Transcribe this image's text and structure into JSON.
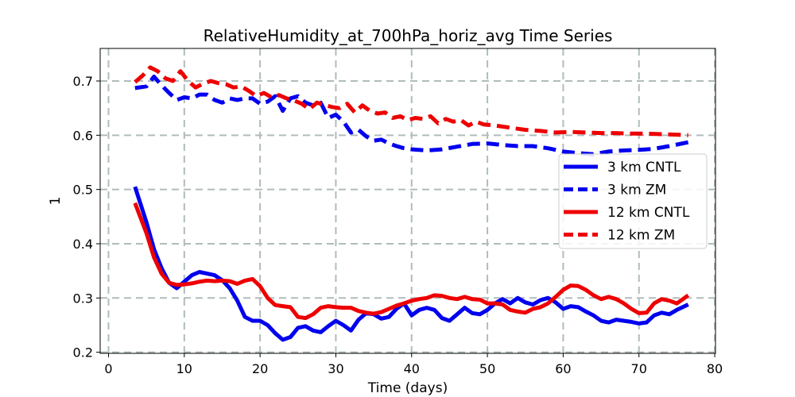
{
  "chart_data": {
    "type": "line",
    "title": "RelativeHumidity_at_700hPa_horiz_avg Time Series",
    "xlabel": "Time (days)",
    "ylabel": "1",
    "xlim": [
      0,
      80
    ],
    "ylim": [
      0.2,
      0.75
    ],
    "xticks": [
      0,
      10,
      20,
      30,
      40,
      50,
      60,
      70,
      80
    ],
    "yticks": [
      0.2,
      0.3,
      0.4,
      0.5,
      0.6,
      0.7
    ],
    "grid": true,
    "legend_position": "center-right",
    "series": [
      {
        "name": "3 km CNTL",
        "color": "#0000ee",
        "style": "solid",
        "x": [
          3.5,
          5,
          6,
          7,
          8,
          9,
          10,
          11,
          12,
          13,
          14,
          15,
          16,
          17,
          18,
          19,
          20,
          21,
          22,
          23,
          24,
          25,
          26,
          27,
          28,
          29,
          30,
          31,
          32,
          33,
          34,
          35,
          36,
          37,
          38,
          39,
          40,
          41,
          42,
          43,
          44,
          45,
          46,
          47,
          48,
          49,
          50,
          51,
          52,
          53,
          54,
          55,
          56,
          57,
          58,
          59,
          60,
          61,
          62,
          63,
          64,
          65,
          66,
          67,
          68,
          69,
          70,
          71,
          72,
          73,
          74,
          75,
          76.5
        ],
        "values": [
          0.505,
          0.44,
          0.39,
          0.355,
          0.328,
          0.318,
          0.33,
          0.342,
          0.348,
          0.345,
          0.342,
          0.333,
          0.318,
          0.295,
          0.265,
          0.258,
          0.258,
          0.25,
          0.235,
          0.223,
          0.228,
          0.245,
          0.248,
          0.24,
          0.237,
          0.248,
          0.258,
          0.25,
          0.24,
          0.26,
          0.272,
          0.27,
          0.262,
          0.265,
          0.28,
          0.29,
          0.268,
          0.278,
          0.282,
          0.278,
          0.263,
          0.258,
          0.27,
          0.282,
          0.272,
          0.27,
          0.278,
          0.29,
          0.298,
          0.29,
          0.3,
          0.292,
          0.288,
          0.296,
          0.3,
          0.292,
          0.28,
          0.285,
          0.283,
          0.275,
          0.268,
          0.258,
          0.255,
          0.26,
          0.258,
          0.256,
          0.253,
          0.255,
          0.268,
          0.273,
          0.27,
          0.278,
          0.288
        ]
      },
      {
        "name": "3 km ZM",
        "color": "#0000ee",
        "style": "dashed",
        "x": [
          3.5,
          5,
          6,
          7,
          8,
          9,
          10,
          11,
          12,
          13,
          14,
          15,
          16,
          17,
          18,
          19,
          20,
          21,
          22,
          23,
          24,
          25,
          26,
          27,
          28,
          29,
          30,
          31,
          32,
          33,
          34,
          35,
          36,
          37,
          38,
          39,
          40,
          42,
          44,
          46,
          48,
          50,
          52,
          54,
          56,
          58,
          60,
          62,
          64,
          66,
          68,
          70,
          72,
          74,
          76.5
        ],
        "values": [
          0.687,
          0.69,
          0.708,
          0.692,
          0.678,
          0.665,
          0.67,
          0.668,
          0.675,
          0.675,
          0.665,
          0.66,
          0.668,
          0.665,
          0.668,
          0.668,
          0.658,
          0.662,
          0.672,
          0.645,
          0.668,
          0.672,
          0.66,
          0.655,
          0.66,
          0.632,
          0.638,
          0.625,
          0.605,
          0.61,
          0.598,
          0.59,
          0.592,
          0.585,
          0.58,
          0.576,
          0.574,
          0.572,
          0.574,
          0.579,
          0.584,
          0.585,
          0.582,
          0.58,
          0.58,
          0.576,
          0.57,
          0.567,
          0.565,
          0.57,
          0.572,
          0.573,
          0.575,
          0.58,
          0.587
        ]
      },
      {
        "name": "12 km CNTL",
        "color": "#ee0000",
        "style": "solid",
        "x": [
          3.5,
          5,
          6,
          7,
          8,
          9,
          10,
          11,
          12,
          13,
          14,
          15,
          16,
          17,
          18,
          19,
          20,
          21,
          22,
          23,
          24,
          25,
          26,
          27,
          28,
          29,
          30,
          31,
          32,
          33,
          34,
          35,
          36,
          37,
          38,
          39,
          40,
          41,
          42,
          43,
          44,
          45,
          46,
          47,
          48,
          49,
          50,
          51,
          52,
          53,
          54,
          55,
          56,
          57,
          58,
          59,
          60,
          61,
          62,
          63,
          64,
          65,
          66,
          67,
          68,
          69,
          70,
          71,
          72,
          73,
          74,
          75,
          76.5
        ],
        "values": [
          0.475,
          0.42,
          0.375,
          0.345,
          0.328,
          0.324,
          0.325,
          0.327,
          0.33,
          0.332,
          0.331,
          0.332,
          0.331,
          0.326,
          0.332,
          0.335,
          0.322,
          0.3,
          0.287,
          0.285,
          0.283,
          0.265,
          0.263,
          0.27,
          0.282,
          0.285,
          0.283,
          0.282,
          0.282,
          0.276,
          0.273,
          0.271,
          0.274,
          0.28,
          0.286,
          0.29,
          0.295,
          0.298,
          0.3,
          0.305,
          0.304,
          0.3,
          0.298,
          0.302,
          0.298,
          0.297,
          0.29,
          0.29,
          0.288,
          0.278,
          0.275,
          0.273,
          0.28,
          0.283,
          0.29,
          0.302,
          0.315,
          0.323,
          0.322,
          0.315,
          0.305,
          0.298,
          0.302,
          0.298,
          0.29,
          0.28,
          0.272,
          0.273,
          0.29,
          0.298,
          0.295,
          0.29,
          0.305
        ]
      },
      {
        "name": "12 km ZM",
        "color": "#ee0000",
        "style": "dashed",
        "x": [
          3.5,
          4.5,
          5.5,
          6.5,
          7.5,
          8.5,
          9.5,
          10.5,
          11.5,
          12.5,
          13.5,
          14.5,
          15.5,
          16.5,
          17.5,
          18.5,
          19.5,
          20.5,
          21.5,
          22.5,
          23.5,
          24.5,
          25.5,
          26.5,
          27.5,
          28.5,
          29.5,
          30.5,
          31.5,
          32.5,
          33.5,
          34.5,
          35.5,
          36.5,
          37.5,
          38.5,
          39.5,
          40.5,
          41.5,
          42.5,
          43.5,
          44.5,
          45.5,
          46.5,
          47.5,
          48.5,
          49.5,
          51,
          53,
          55,
          57,
          59,
          61,
          63,
          65,
          67,
          69,
          71,
          73,
          75,
          76.5
        ],
        "values": [
          0.698,
          0.71,
          0.725,
          0.718,
          0.705,
          0.7,
          0.718,
          0.7,
          0.688,
          0.695,
          0.7,
          0.696,
          0.694,
          0.688,
          0.69,
          0.682,
          0.672,
          0.678,
          0.67,
          0.674,
          0.668,
          0.664,
          0.658,
          0.648,
          0.66,
          0.656,
          0.652,
          0.65,
          0.658,
          0.642,
          0.655,
          0.645,
          0.64,
          0.642,
          0.632,
          0.635,
          0.628,
          0.632,
          0.63,
          0.635,
          0.622,
          0.63,
          0.625,
          0.628,
          0.618,
          0.625,
          0.62,
          0.618,
          0.614,
          0.61,
          0.608,
          0.605,
          0.606,
          0.605,
          0.604,
          0.604,
          0.603,
          0.603,
          0.602,
          0.601,
          0.6
        ]
      }
    ]
  }
}
